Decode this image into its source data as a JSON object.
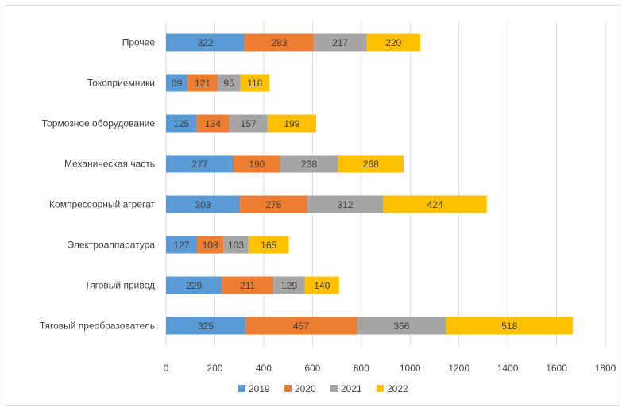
{
  "chart_data": {
    "type": "bar",
    "orientation": "horizontal",
    "stacked": true,
    "categories": [
      "Прочее",
      "Токоприемники",
      "Тормозное оборудование",
      "Механическая часть",
      "Компрессорный агрегат",
      "Электроаппаратура",
      "Тяговый привод",
      "Тяговый преобразователь"
    ],
    "series": [
      {
        "name": "2019",
        "color": "#5b9bd5",
        "values": [
          322,
          89,
          125,
          277,
          303,
          127,
          229,
          325
        ]
      },
      {
        "name": "2020",
        "color": "#ed7d31",
        "values": [
          283,
          121,
          134,
          190,
          275,
          108,
          211,
          457
        ]
      },
      {
        "name": "2021",
        "color": "#a5a5a5",
        "values": [
          217,
          95,
          157,
          238,
          312,
          103,
          129,
          366
        ]
      },
      {
        "name": "2022",
        "color": "#ffc000",
        "values": [
          220,
          118,
          199,
          268,
          424,
          165,
          140,
          518
        ]
      }
    ],
    "xlim": [
      0,
      1800
    ],
    "x_ticks": [
      "0",
      "200",
      "400",
      "600",
      "800",
      "1000",
      "1200",
      "1400",
      "1600",
      "1800"
    ],
    "grid": true,
    "legend_position": "bottom",
    "data_labels": true
  }
}
